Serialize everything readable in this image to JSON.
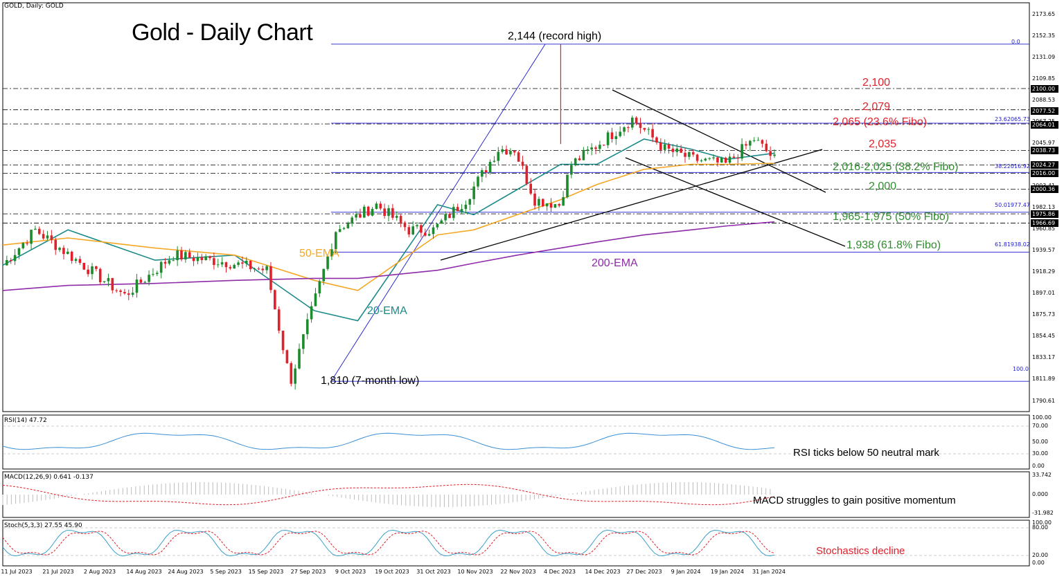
{
  "window": {
    "symbol_label": "GOLD, Daily:  GOLD"
  },
  "title": "Gold - Daily Chart",
  "price_axis": {
    "ticks": [
      "2173.65",
      "2152.35",
      "2131.09",
      "2109.85",
      "2088.53",
      "2067.25",
      "2045.97",
      "2024.69",
      "2003.41",
      "1982.13",
      "1960.85",
      "1939.57",
      "1918.29",
      "1897.01",
      "1875.73",
      "1854.45",
      "1833.17",
      "1811.89",
      "1790.61"
    ],
    "highlighted": [
      "2100.00",
      "2077.52",
      "2064.01",
      "2038.73",
      "2024.27",
      "2016.00",
      "2000.36",
      "1975.86",
      "1966.69"
    ]
  },
  "x_axis": {
    "labels": [
      "11 Jul 2023",
      "21 Jul 2023",
      "2 Aug 2023",
      "14 Aug 2023",
      "24 Aug 2023",
      "5 Sep 2023",
      "15 Sep 2023",
      "27 Sep 2023",
      "9 Oct 2023",
      "19 Oct 2023",
      "31 Oct 2023",
      "10 Nov 2023",
      "22 Nov 2023",
      "4 Dec 2023",
      "14 Dec 2023",
      "27 Dec 2023",
      "9 Jan 2024",
      "19 Jan 2024",
      "31 Jan 2024"
    ]
  },
  "annotations": {
    "record_high": "2,144 (record high)",
    "low": "1,810 (7-month low)",
    "ema50": "50-EMA",
    "ema20": "20-EMA",
    "ema200": "200-EMA",
    "lvl_2100": "2,100",
    "lvl_2079": "2,079",
    "lvl_2065": "2,065 (23.6% Fibo)",
    "lvl_2035": "2,035",
    "lvl_2016": "2,016-2,025 (38.2% Fibo)",
    "lvl_2000": "2,000",
    "lvl_1965": "1,965-1,975 (50% Fibo)",
    "lvl_1938": "1,938 (61.8% Fibo)"
  },
  "fibo_labels": {
    "f0": "0.0",
    "f236": "23.62065.73",
    "f382": "38.22016.92",
    "f50": "50.01977.47",
    "f618": "61.81938.02",
    "f100": "100.0"
  },
  "rsi": {
    "label": "RSI(14) 47.72",
    "note": "RSI ticks below 50 neutral mark",
    "ticks": [
      "100.00",
      "70.00",
      "50.00",
      "30.00",
      "0.00"
    ]
  },
  "macd": {
    "label": "MACD(12,26,9) 0.641 -0.137",
    "note": "MACD struggles to gain positive momentum",
    "ticks": [
      "33.742",
      "0.000",
      "-31.982"
    ]
  },
  "stoch": {
    "label": "Stoch(5,3,3) 27.55 45.90",
    "note": "Stochastics decline",
    "ticks": [
      "100.00",
      "80.00",
      "20.00",
      "0.00"
    ]
  },
  "colors": {
    "bull": "#1e8a2e",
    "bear": "#e0202a",
    "ema20": "#1d8a8a",
    "ema50": "#f5a623",
    "ema200": "#8e2ba8",
    "fibo": "#1a1acf",
    "red_text": "#e0202a",
    "green_text": "#2e8b2e",
    "rsi_line": "#3a8fd6",
    "macd_signal": "#e0202a",
    "stoch_main": "#3a9fc9"
  },
  "chart_data": {
    "type": "candlestick",
    "title": "Gold - Daily Chart",
    "timeframe": "Daily",
    "y_range": [
      1780,
      2185
    ],
    "x_range": [
      "2023-07-03",
      "2024-02-01"
    ],
    "record_high": 2144,
    "seven_month_low": 1810,
    "last_close_approx": 2030,
    "levels": [
      2100,
      2079,
      2065,
      2035,
      2025,
      2016,
      2000,
      1975,
      1965,
      1938
    ],
    "fibonacci": [
      {
        "ratio": "0.0",
        "price": 2144
      },
      {
        "ratio": "23.6",
        "price": 2065.73
      },
      {
        "ratio": "38.2",
        "price": 2016.92
      },
      {
        "ratio": "50.0",
        "price": 1977.47
      },
      {
        "ratio": "61.8",
        "price": 1938.02
      },
      {
        "ratio": "100.0",
        "price": 1810
      }
    ],
    "ema_series": [
      {
        "name": "20-EMA",
        "points": [
          [
            "2023-07-03",
            1925
          ],
          [
            "2023-07-21",
            1960
          ],
          [
            "2023-08-14",
            1930
          ],
          [
            "2023-09-05",
            1935
          ],
          [
            "2023-09-27",
            1880
          ],
          [
            "2023-10-09",
            1870
          ],
          [
            "2023-10-31",
            1985
          ],
          [
            "2023-11-10",
            1975
          ],
          [
            "2023-11-22",
            2000
          ],
          [
            "2023-12-04",
            2025
          ],
          [
            "2023-12-14",
            2025
          ],
          [
            "2023-12-27",
            2050
          ],
          [
            "2024-01-09",
            2040
          ],
          [
            "2024-01-19",
            2030
          ],
          [
            "2024-02-01",
            2036
          ]
        ]
      },
      {
        "name": "50-EMA",
        "points": [
          [
            "2023-07-03",
            1945
          ],
          [
            "2023-07-21",
            1952
          ],
          [
            "2023-08-14",
            1942
          ],
          [
            "2023-09-05",
            1935
          ],
          [
            "2023-09-27",
            1910
          ],
          [
            "2023-10-09",
            1900
          ],
          [
            "2023-10-31",
            1955
          ],
          [
            "2023-11-10",
            1960
          ],
          [
            "2023-11-22",
            1975
          ],
          [
            "2023-12-04",
            1990
          ],
          [
            "2023-12-14",
            2005
          ],
          [
            "2023-12-27",
            2020
          ],
          [
            "2024-01-09",
            2025
          ],
          [
            "2024-01-19",
            2025
          ],
          [
            "2024-02-01",
            2026
          ]
        ]
      },
      {
        "name": "200-EMA",
        "points": [
          [
            "2023-07-03",
            1900
          ],
          [
            "2023-07-21",
            1905
          ],
          [
            "2023-08-14",
            1907
          ],
          [
            "2023-09-05",
            1910
          ],
          [
            "2023-09-27",
            1912
          ],
          [
            "2023-10-09",
            1912
          ],
          [
            "2023-10-31",
            1920
          ],
          [
            "2023-11-10",
            1927
          ],
          [
            "2023-11-22",
            1935
          ],
          [
            "2023-12-04",
            1942
          ],
          [
            "2023-12-14",
            1948
          ],
          [
            "2023-12-27",
            1955
          ],
          [
            "2024-01-09",
            1960
          ],
          [
            "2024-01-19",
            1964
          ],
          [
            "2024-02-01",
            1968
          ]
        ]
      }
    ]
  }
}
